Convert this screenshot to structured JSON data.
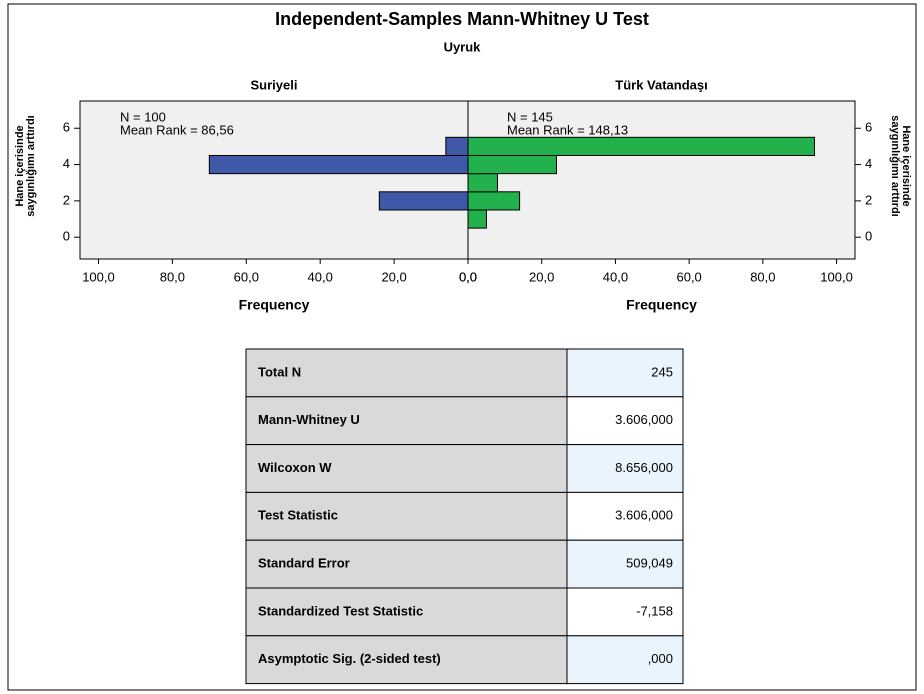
{
  "header": {
    "title": "Independent-Samples Mann-Whitney U Test",
    "subtitle": "Uyruk"
  },
  "chart_data": [
    {
      "type": "histogram",
      "orientation": "horizontal",
      "direction": "left",
      "title": "Suriyeli",
      "bins": [
        0.5,
        1.5,
        2.5,
        3.5,
        4.5,
        5.5
      ],
      "values": [
        0,
        24,
        0,
        70,
        6
      ],
      "color": "#3f58a8",
      "xlim": [
        0,
        105
      ],
      "xticks": [
        {
          "value": 100,
          "label": "100,0"
        },
        {
          "value": 80,
          "label": "80,0"
        },
        {
          "value": 60,
          "label": "60,0"
        },
        {
          "value": 40,
          "label": "40,0"
        },
        {
          "value": 20,
          "label": "20,0"
        },
        {
          "value": 0,
          "label": "0,0"
        }
      ],
      "ylim": [
        -1.2,
        7.5
      ],
      "yticks": [
        0,
        2,
        4,
        6
      ],
      "xlabel": "Frequency",
      "ylabel": [
        "Hane içerisinde",
        "saygınlığımı arttırdı"
      ],
      "yaxis_side": "left",
      "annotations": [
        "N = 100",
        "Mean Rank = 86,56"
      ]
    },
    {
      "type": "histogram",
      "orientation": "horizontal",
      "direction": "right",
      "title": "Türk Vatandaşı",
      "bins": [
        0.5,
        1.5,
        2.5,
        3.5,
        4.5,
        5.5
      ],
      "values": [
        5,
        14,
        8,
        24,
        94
      ],
      "color": "#22b14c",
      "xlim": [
        0,
        105
      ],
      "xticks": [
        {
          "value": 0,
          "label": "0,0"
        },
        {
          "value": 20,
          "label": "20,0"
        },
        {
          "value": 40,
          "label": "40,0"
        },
        {
          "value": 60,
          "label": "60,0"
        },
        {
          "value": 80,
          "label": "80,0"
        },
        {
          "value": 100,
          "label": "100,0"
        }
      ],
      "ylim": [
        -1.2,
        7.5
      ],
      "yticks": [
        0,
        2,
        4,
        6
      ],
      "xlabel": "Frequency",
      "ylabel": [
        "Hane içerisinde",
        "saygınlığımı arttırdı"
      ],
      "yaxis_side": "right",
      "annotations": [
        "N = 145",
        "Mean Rank = 148,13"
      ]
    }
  ],
  "table": {
    "rows": [
      [
        "Total N",
        "245"
      ],
      [
        "Mann-Whitney U",
        "3.606,000"
      ],
      [
        "Wilcoxon W",
        "8.656,000"
      ],
      [
        "Test Statistic",
        "3.606,000"
      ],
      [
        "Standard Error",
        "509,049"
      ],
      [
        "Standardized Test Statistic",
        "-7,158"
      ],
      [
        "Asymptotic Sig. (2-sided test)",
        ",000"
      ]
    ]
  }
}
